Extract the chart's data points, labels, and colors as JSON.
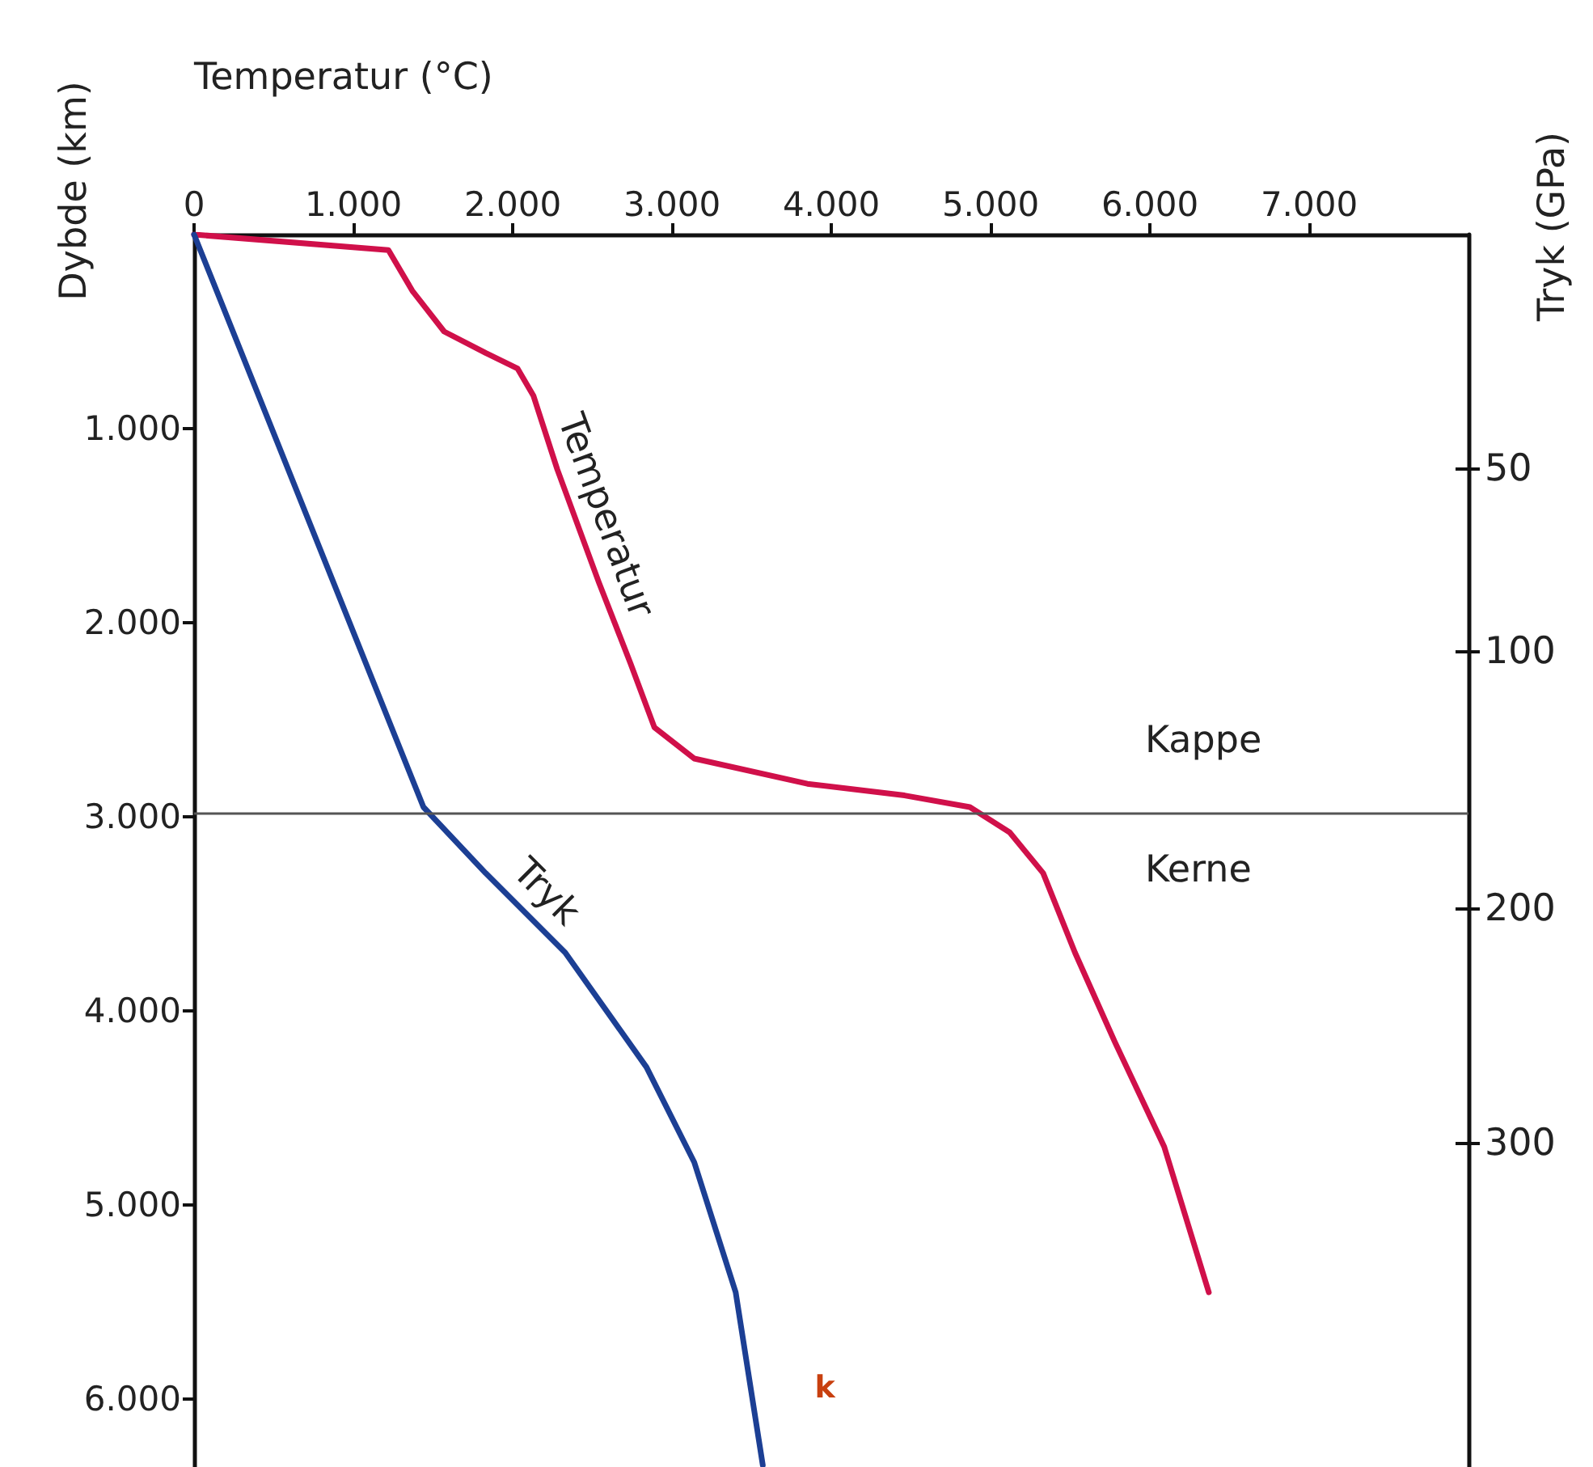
{
  "chart_data": {
    "type": "line",
    "xlabel": "Temperatur (°C)",
    "ylabel": "Dybde (km)",
    "y2label": "Tryk (GPa)",
    "xlim": [
      0,
      8000
    ],
    "xticks": [
      0,
      {
        "value": 1000,
        "label": "1.000"
      },
      {
        "value": 2000,
        "label": "2.000"
      },
      {
        "value": 3000,
        "label": "3.000"
      },
      {
        "value": 4000,
        "label": "4.000"
      },
      {
        "value": 5000,
        "label": "5.000"
      },
      {
        "value": 6000,
        "label": "6.000"
      },
      {
        "value": 7000,
        "label": "7.000"
      }
    ],
    "ylim": [
      6350,
      0
    ],
    "yticks": [
      {
        "value": 1000,
        "label": "1.000"
      },
      {
        "value": 2000,
        "label": "2.000"
      },
      {
        "value": 3000,
        "label": "3.000"
      },
      {
        "value": 4000,
        "label": "4.000"
      },
      {
        "value": 5000,
        "label": "5.000"
      },
      {
        "value": 6000,
        "label": "6.000"
      }
    ],
    "series": [
      {
        "name": "Temperatur",
        "color": "#d0104a",
        "x": [
          0,
          1220,
          1370,
          1570,
          1830,
          2030,
          2130,
          2280,
          2540,
          2740,
          2890,
          3140,
          3850,
          4460,
          4870,
          5120,
          5330,
          5530,
          5780,
          6090,
          6370
        ],
        "values": [
          0,
          80,
          290,
          500,
          610,
          690,
          830,
          1210,
          1790,
          2210,
          2540,
          2700,
          2830,
          2890,
          2950,
          3080,
          3290,
          3700,
          4160,
          4700,
          5450
        ]
      },
      {
        "name": "Tryk",
        "color": "#1c3f94",
        "x": [
          0,
          1440,
          1830,
          2330,
          2840,
          3140,
          3400,
          3570
        ],
        "values": [
          0,
          2950,
          3290,
          3700,
          4290,
          4780,
          5450,
          6340
        ]
      }
    ],
    "ref_lines": [
      {
        "axis": "y",
        "value": 2980,
        "label": null,
        "color": "#555555"
      }
    ],
    "annotations": [
      "Kappe",
      "Kerne",
      "50",
      "100",
      "200",
      "300",
      "k"
    ],
    "grid": false,
    "legend": false,
    "marker": "none",
    "line_style": "solid"
  }
}
